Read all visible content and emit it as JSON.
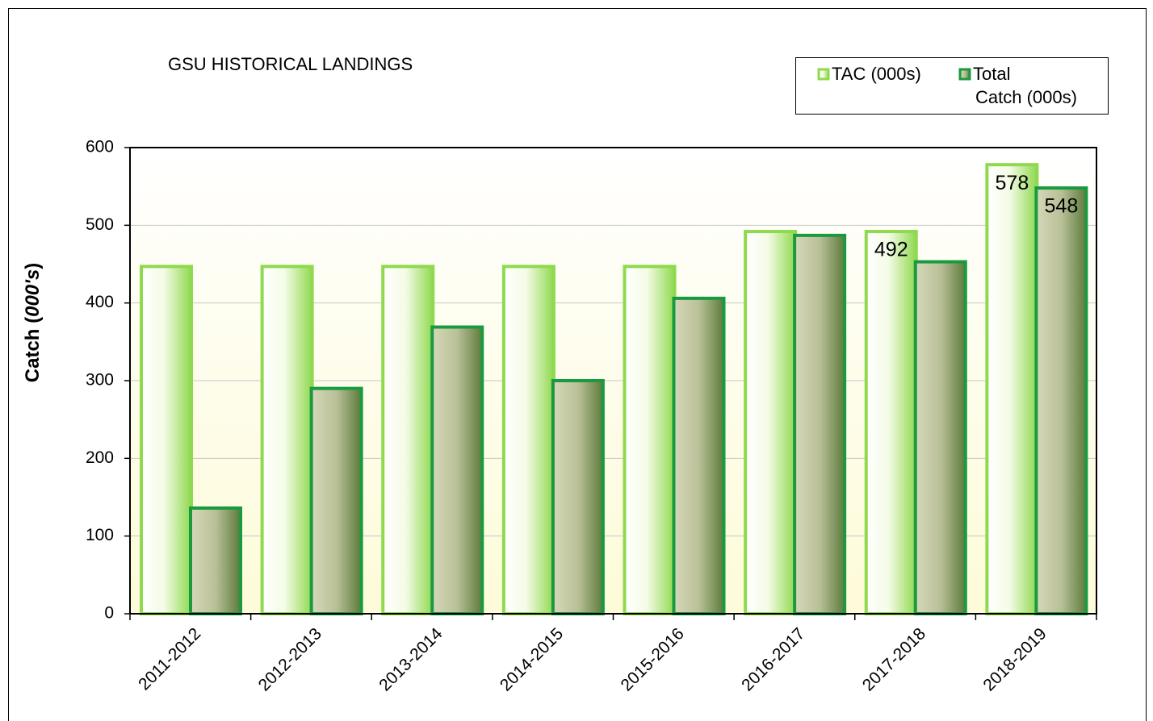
{
  "chart_data": {
    "type": "bar",
    "title": "GSU HISTORICAL LANDINGS",
    "y_label": [
      "Catch (",
      "000's",
      ")"
    ],
    "categories": [
      "2011-2012",
      "2012-2013",
      "2013-2014",
      "2014-2015",
      "2015-2016",
      "2016-2017",
      "2017-2018",
      "2018-2019"
    ],
    "series": [
      {
        "name": "TAC (000s)",
        "color": "#8fd94f",
        "values": [
          447,
          447,
          447,
          447,
          447,
          492,
          492,
          578
        ],
        "value_labels": [
          null,
          null,
          null,
          null,
          null,
          null,
          "492",
          "578"
        ]
      },
      {
        "name": "Total Catch (000s)",
        "color": "#1a9a40",
        "values": [
          136,
          290,
          369,
          300,
          406,
          487,
          453,
          548
        ],
        "value_labels": [
          null,
          null,
          null,
          null,
          null,
          null,
          null,
          "548"
        ]
      }
    ],
    "ylim": [
      0,
      600
    ],
    "yticks": [
      0,
      100,
      200,
      300,
      400,
      500,
      600
    ],
    "grid": true,
    "legend": "top-right"
  }
}
